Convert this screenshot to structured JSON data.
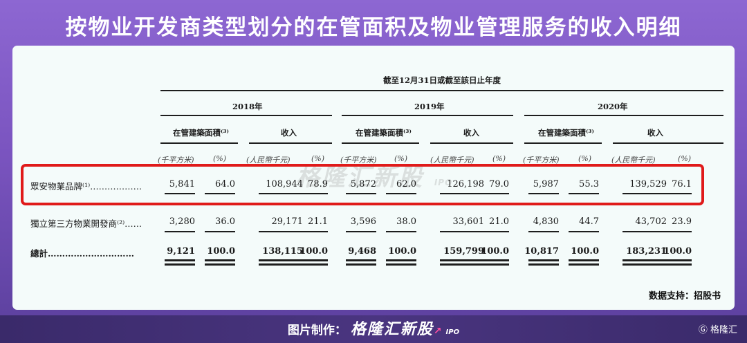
{
  "header": {
    "title": "按物业开发商类型划分的在管面积及物业管理服务的收入明细"
  },
  "table": {
    "period_header": "截至12月31日或截至該日止年度",
    "years": [
      "2018年",
      "2019年",
      "2020年"
    ],
    "group_area": "在管建築面積⁽³⁾",
    "group_revenue": "收入",
    "units": {
      "area": "(千平方米)",
      "pct": "(%)",
      "rmb": "(人民幣千元)"
    },
    "rows": [
      {
        "label": "眾安物業品牌⁽¹⁾………………",
        "y2018": [
          "5,841",
          "64.0",
          "108,944",
          "78.9"
        ],
        "y2019": [
          "5,872",
          "62.0",
          "126,198",
          "79.0"
        ],
        "y2020": [
          "5,987",
          "55.3",
          "139,529",
          "76.1"
        ]
      },
      {
        "label": "獨立第三方物業開發商⁽²⁾……",
        "y2018": [
          "3,280",
          "36.0",
          "29,171",
          "21.1"
        ],
        "y2019": [
          "3,596",
          "38.0",
          "33,601",
          "21.0"
        ],
        "y2020": [
          "4,830",
          "44.7",
          "43,702",
          "23.9"
        ]
      },
      {
        "label": "總計…………………………",
        "y2018": [
          "9,121",
          "100.0",
          "138,115",
          "100.0"
        ],
        "y2019": [
          "9,468",
          "100.0",
          "159,799",
          "100.0"
        ],
        "y2020": [
          "10,817",
          "100.0",
          "183,231",
          "100.0"
        ]
      }
    ]
  },
  "watermark": {
    "text": "格隆汇新股",
    "sub": "IPO"
  },
  "source": "数据支持：招股书",
  "footer": {
    "credit_label": "图片制作：",
    "brand": "格隆汇新股",
    "brand_sub": "IPO",
    "logo": "格隆汇"
  }
}
